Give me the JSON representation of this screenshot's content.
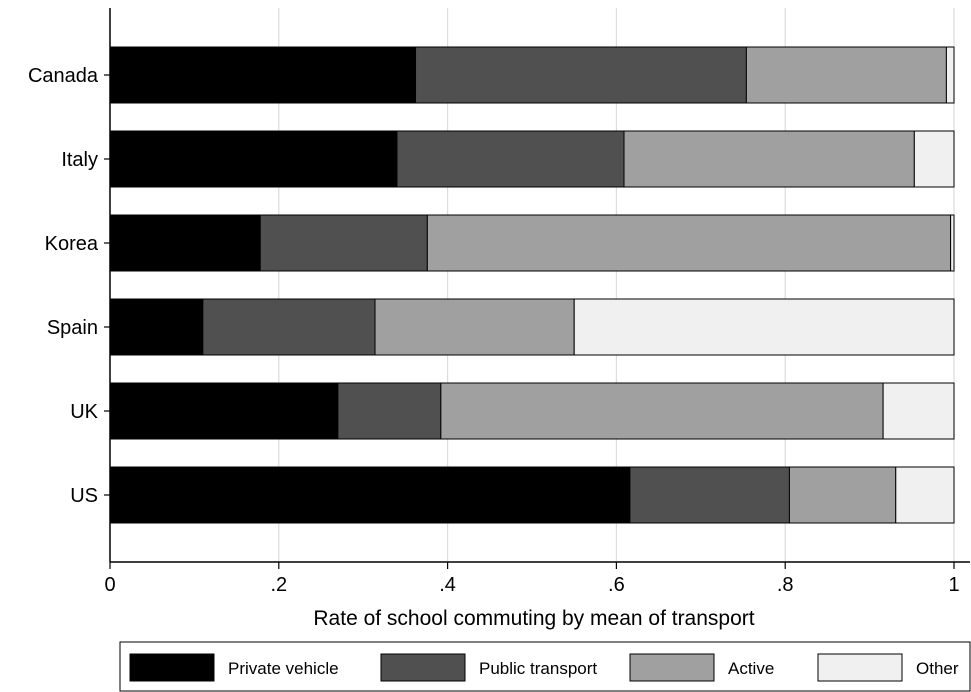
{
  "chart_data": {
    "type": "bar",
    "orientation": "horizontal",
    "stacked": true,
    "categories": [
      "Canada",
      "Italy",
      "Korea",
      "Spain",
      "UK",
      "US"
    ],
    "series": [
      {
        "name": "Private vehicle",
        "color": "#000000",
        "values": [
          0.362,
          0.34,
          0.178,
          0.11,
          0.27,
          0.616
        ]
      },
      {
        "name": "Public transport",
        "color": "#505050",
        "values": [
          0.392,
          0.269,
          0.198,
          0.204,
          0.122,
          0.189
        ]
      },
      {
        "name": "Active",
        "color": "#a0a0a0",
        "values": [
          0.237,
          0.344,
          0.62,
          0.236,
          0.524,
          0.126
        ]
      },
      {
        "name": "Other",
        "color": "#f0f0f0",
        "values": [
          0.009,
          0.047,
          0.004,
          0.45,
          0.084,
          0.069
        ]
      }
    ],
    "xlabel": "Rate of school commuting by mean of transport",
    "xlim": [
      0,
      1
    ],
    "xticks": [
      0,
      0.2,
      0.4,
      0.6,
      0.8,
      1
    ],
    "xtick_labels": [
      "0",
      ".2",
      ".4",
      ".6",
      ".8",
      "1"
    ],
    "grid": true,
    "legend_position": "bottom"
  }
}
